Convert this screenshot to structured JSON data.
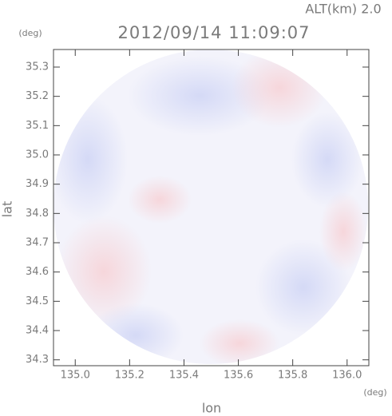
{
  "chart_data": {
    "type": "radar-ppi",
    "title": "2012/09/14 11:09:07",
    "subtitle": "ALT(km) 2.0",
    "x_label": "lon",
    "y_label": "lat",
    "x_unit": "(deg)",
    "y_unit": "(deg)",
    "xlim": [
      134.92,
      136.08
    ],
    "ylim": [
      34.28,
      35.36
    ],
    "xticks": [
      {
        "value": 135.0,
        "label": "135.0"
      },
      135.2,
      135.4,
      135.6,
      135.8,
      {
        "value": 136.0,
        "label": "136.0"
      }
    ],
    "yticks": [
      {
        "value": 34.3,
        "label": "34.3"
      },
      {
        "value": 34.4,
        "label": "34.4"
      },
      {
        "value": 34.5,
        "label": "34.5"
      },
      {
        "value": 34.6,
        "label": "34.6"
      },
      {
        "value": 34.7,
        "label": "34.7"
      },
      {
        "value": 34.8,
        "label": "34.8"
      },
      {
        "value": 34.9,
        "label": "34.9"
      },
      {
        "value": 35.0,
        "label": "35.0"
      },
      {
        "value": 35.1,
        "label": "35.1"
      },
      {
        "value": 35.2,
        "label": "35.2"
      },
      {
        "value": 35.3,
        "label": "35.3"
      }
    ]
  }
}
